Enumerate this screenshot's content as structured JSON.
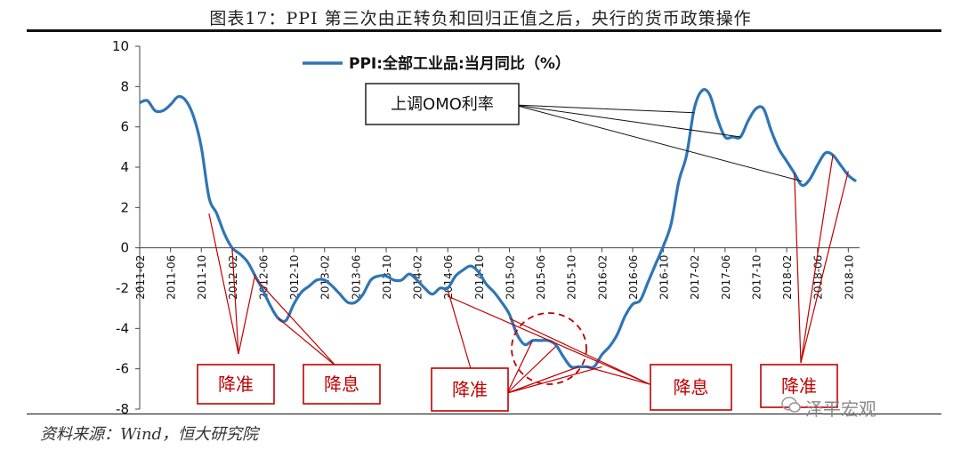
{
  "title": "图表17：PPI 第三次由正转负和回归正值之后，央行的货币政策操作",
  "source": "资料来源：Wind，恒大研究院",
  "watermark": "泽平宏观",
  "colors": {
    "line": "#2e75b6",
    "callout": "#c00000",
    "text": "#111111"
  },
  "chart_data": {
    "type": "line",
    "title": "",
    "legend": "PPI:全部工业品:当月同比（%）",
    "ylim": [
      -8,
      10
    ],
    "yticks": [
      -8,
      -6,
      -4,
      -2,
      0,
      2,
      4,
      6,
      8,
      10
    ],
    "xtick_labels": [
      "2011-02",
      "2011-06",
      "2011-10",
      "2012-02",
      "2012-06",
      "2012-10",
      "2013-02",
      "2013-06",
      "2013-10",
      "2014-02",
      "2014-06",
      "2014-10",
      "2015-02",
      "2015-06",
      "2015-10",
      "2016-02",
      "2016-06",
      "2016-10",
      "2017-02",
      "2017-06",
      "2017-10",
      "2018-02",
      "2018-06",
      "2018-10"
    ],
    "x_start": "2011-02",
    "values": [
      7.2,
      7.3,
      6.8,
      6.8,
      7.1,
      7.5,
      7.3,
      6.5,
      5.0,
      2.5,
      1.7,
      0.7,
      0.0,
      -0.3,
      -0.7,
      -1.4,
      -2.1,
      -2.9,
      -3.5,
      -3.6,
      -2.8,
      -2.2,
      -1.9,
      -1.6,
      -1.6,
      -1.9,
      -2.3,
      -2.7,
      -2.7,
      -2.3,
      -1.6,
      -1.4,
      -1.4,
      -1.6,
      -1.6,
      -1.3,
      -1.6,
      -2.0,
      -2.3,
      -2.0,
      -2.0,
      -1.4,
      -1.1,
      -0.9,
      -1.2,
      -1.8,
      -2.2,
      -2.7,
      -3.3,
      -4.3,
      -4.8,
      -4.6,
      -4.6,
      -4.6,
      -4.8,
      -5.4,
      -5.9,
      -5.9,
      -5.9,
      -5.9,
      -5.3,
      -4.9,
      -4.3,
      -3.4,
      -2.8,
      -2.6,
      -1.7,
      -0.8,
      0.1,
      1.2,
      3.3,
      4.6,
      6.9,
      7.8,
      7.6,
      6.4,
      5.5,
      5.5,
      5.5,
      6.3,
      6.9,
      6.9,
      5.8,
      4.9,
      4.3,
      3.7,
      3.1,
      3.4,
      4.1,
      4.7,
      4.6,
      4.1,
      3.6,
      3.3
    ],
    "annotations": [
      {
        "label": "降准"
      },
      {
        "label": "降息"
      },
      {
        "label": "降准"
      },
      {
        "label": "降息"
      },
      {
        "label": "降准"
      },
      {
        "label": "上调OMO利率"
      }
    ]
  }
}
